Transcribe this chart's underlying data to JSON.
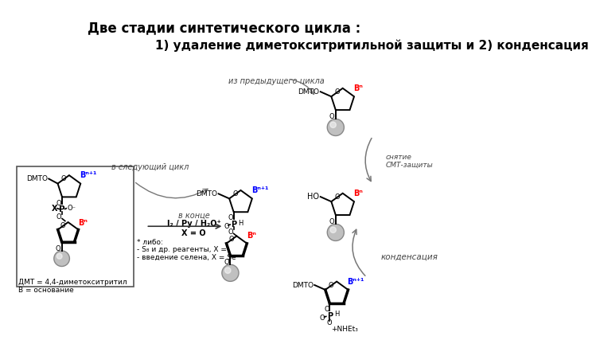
{
  "title1": "Две стадии синтетического цикла :",
  "title2": "1) удаление диметокситритильной защиты и 2) конденсация",
  "bg_color": "#ffffff",
  "text_color": "#000000",
  "label_iz_pred": "из предыдущего цикла",
  "label_snyatie": "снятие\nСМТ-защиты",
  "label_v_sledy": "в следующий цикл",
  "label_kondensacia": "конденсация",
  "label_v_konce": "в конце",
  "label_i2": "I₂ / Py / H₂O⁺",
  "label_x_o": "X = O",
  "label_libo": "* либо:",
  "label_s8": "- S₈ и др. реагенты, X = S",
  "label_selen": "- введение селена, X = Se",
  "label_dmt": "ДМТ = 4,4-диметокситритил",
  "label_b": "B = основание",
  "nhет_label": "+NHEt₃"
}
